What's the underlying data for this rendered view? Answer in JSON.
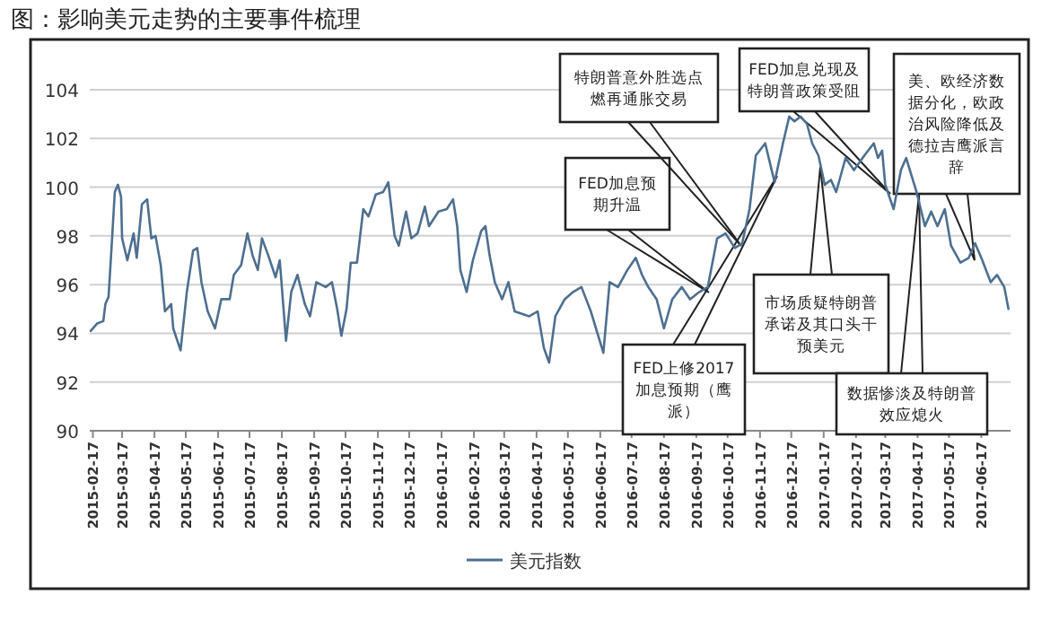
{
  "chart_data": {
    "type": "line",
    "title": "图：影响美元走势的主要事件梳理",
    "xlim": [
      "2015-02-14",
      "2017-07-15"
    ],
    "ylim": [
      90,
      104
    ],
    "yticks": [
      90,
      92,
      94,
      96,
      98,
      100,
      102,
      104
    ],
    "xticks": [
      "2015-02-17",
      "2015-03-17",
      "2015-04-17",
      "2015-05-17",
      "2015-06-17",
      "2015-07-17",
      "2015-08-17",
      "2015-09-17",
      "2015-10-17",
      "2015-11-17",
      "2015-12-17",
      "2016-01-17",
      "2016-02-17",
      "2016-03-17",
      "2016-04-17",
      "2016-05-17",
      "2016-06-17",
      "2016-07-17",
      "2016-08-17",
      "2016-09-17",
      "2016-10-17",
      "2016-11-17",
      "2016-12-17",
      "2017-01-17",
      "2017-02-17",
      "2017-03-17",
      "2017-04-17",
      "2017-05-17",
      "2017-06-17"
    ],
    "grid": "y",
    "legend": "bottom",
    "x": [
      "2015-02-15",
      "2015-02-21",
      "2015-02-27",
      "2015-03-01",
      "2015-03-04",
      "2015-03-07",
      "2015-03-10",
      "2015-03-13",
      "2015-03-16",
      "2015-03-17",
      "2015-03-22",
      "2015-03-28",
      "2015-03-31",
      "2015-04-05",
      "2015-04-10",
      "2015-04-14",
      "2015-04-18",
      "2015-04-23",
      "2015-04-27",
      "2015-05-03",
      "2015-05-05",
      "2015-05-12",
      "2015-05-18",
      "2015-05-24",
      "2015-05-28",
      "2015-06-01",
      "2015-06-07",
      "2015-06-14",
      "2015-06-20",
      "2015-06-28",
      "2015-07-02",
      "2015-07-09",
      "2015-07-15",
      "2015-07-20",
      "2015-07-25",
      "2015-07-29",
      "2015-08-04",
      "2015-08-11",
      "2015-08-15",
      "2015-08-21",
      "2015-08-26",
      "2015-09-01",
      "2015-09-08",
      "2015-09-13",
      "2015-09-19",
      "2015-09-28",
      "2015-10-04",
      "2015-10-09",
      "2015-10-13",
      "2015-10-18",
      "2015-10-22",
      "2015-10-28",
      "2015-11-03",
      "2015-11-08",
      "2015-11-15",
      "2015-11-22",
      "2015-11-27",
      "2015-12-03",
      "2015-12-07",
      "2015-12-14",
      "2015-12-19",
      "2015-12-25",
      "2016-01-01",
      "2016-01-05",
      "2016-01-14",
      "2016-01-22",
      "2016-01-28",
      "2016-02-01",
      "2016-02-04",
      "2016-02-10",
      "2016-02-16",
      "2016-02-24",
      "2016-02-28",
      "2016-03-03",
      "2016-03-08",
      "2016-03-15",
      "2016-03-21",
      "2016-03-27",
      "2016-04-10",
      "2016-04-18",
      "2016-04-24",
      "2016-04-29",
      "2016-05-05",
      "2016-05-14",
      "2016-05-22",
      "2016-05-30",
      "2016-06-08",
      "2016-06-20",
      "2016-06-26",
      "2016-07-04",
      "2016-07-13",
      "2016-07-21",
      "2016-07-27",
      "2016-08-02",
      "2016-08-10",
      "2016-08-17",
      "2016-08-25",
      "2016-09-03",
      "2016-09-11",
      "2016-09-20",
      "2016-09-28",
      "2016-10-07",
      "2016-10-15",
      "2016-10-24",
      "2016-10-31",
      "2016-11-07",
      "2016-11-13",
      "2016-11-22",
      "2016-12-01",
      "2016-12-09",
      "2016-12-15",
      "2016-12-20",
      "2016-12-26",
      "2017-01-01",
      "2017-01-06",
      "2017-01-12",
      "2017-01-18",
      "2017-01-24",
      "2017-01-29",
      "2017-02-07",
      "2017-02-15",
      "2017-02-25",
      "2017-03-06",
      "2017-03-10",
      "2017-03-14",
      "2017-03-17",
      "2017-03-25",
      "2017-04-01",
      "2017-04-06",
      "2017-04-16",
      "2017-04-24",
      "2017-04-30",
      "2017-05-06",
      "2017-05-13",
      "2017-05-19",
      "2017-05-28",
      "2017-06-05",
      "2017-06-11",
      "2017-06-17",
      "2017-06-26",
      "2017-07-02",
      "2017-07-09",
      "2017-07-13"
    ],
    "series": [
      {
        "name": "美元指数",
        "color": "#4d6f8f",
        "values": [
          94.1,
          94.4,
          94.5,
          95.2,
          95.5,
          97.6,
          99.8,
          100.1,
          99.6,
          97.9,
          97.0,
          98.1,
          97.1,
          99.3,
          99.5,
          97.9,
          98.0,
          96.8,
          94.9,
          95.2,
          94.2,
          93.3,
          95.7,
          97.4,
          97.5,
          96.1,
          94.9,
          94.2,
          95.4,
          95.4,
          96.4,
          96.8,
          98.1,
          97.2,
          96.6,
          97.9,
          97.2,
          96.3,
          97.0,
          93.7,
          95.7,
          96.4,
          95.2,
          94.7,
          96.1,
          95.9,
          96.1,
          95.0,
          93.9,
          95.0,
          96.9,
          96.9,
          99.1,
          98.8,
          99.7,
          99.8,
          100.2,
          98.0,
          97.6,
          99.0,
          97.9,
          98.1,
          99.2,
          98.4,
          99.0,
          99.1,
          99.5,
          98.4,
          96.6,
          95.7,
          97.0,
          98.2,
          98.4,
          97.2,
          96.1,
          95.4,
          96.1,
          94.9,
          94.7,
          94.9,
          93.4,
          92.8,
          94.7,
          95.4,
          95.7,
          95.9,
          94.9,
          93.2,
          96.1,
          95.9,
          96.6,
          97.1,
          96.4,
          95.9,
          95.4,
          94.2,
          95.4,
          95.9,
          95.4,
          95.7,
          95.9,
          97.9,
          98.1,
          97.5,
          97.7,
          99.1,
          101.3,
          101.8,
          100.2,
          101.8,
          102.9,
          102.7,
          102.9,
          102.6,
          101.8,
          101.3,
          100.1,
          100.3,
          99.8,
          101.2,
          100.7,
          101.3,
          101.8,
          101.2,
          101.5,
          100.1,
          99.1,
          100.7,
          101.2,
          99.8,
          98.4,
          99.0,
          98.4,
          99.1,
          97.6,
          96.9,
          97.1,
          97.7,
          97.1,
          96.1,
          96.4,
          95.9,
          95.0
        ]
      }
    ],
    "annotations": [
      "FED加息预期升温",
      "特朗普意外胜选点燃再通胀交易",
      "FED上修2017加息预期（鹰派）",
      "FED加息兑现及特朗普政策受阻",
      "市场质疑特朗普承诺及其口头干预美元",
      "美、欧经济数据分化，欧政治风险降低及德拉吉鹰派言辞",
      "数据惨淡及特朗普效应熄火"
    ]
  }
}
